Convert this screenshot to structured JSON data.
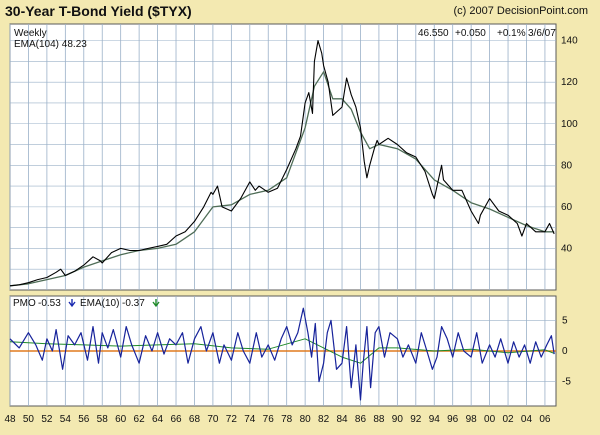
{
  "title": "30-Year T-Bond Yield ($TYX)",
  "copyright": "(c) 2007 DecisionPoint.com",
  "colors": {
    "background": "#f3e9b1",
    "panel": "#ffffff",
    "grid": "#9ab0c8",
    "price_line": "#000000",
    "ema_line": "#4f6d57",
    "pmo_line": "#17239b",
    "pmo_ema_line": "#1f8a2a",
    "zero_line": "#e07a1e",
    "down_arrow": "#1a2ab0",
    "up_arrow": "#1f8a2a"
  },
  "chart_data": [
    {
      "type": "line",
      "panel": "price",
      "period_label": "Weekly",
      "ema_label": "EMA(104) 48.23",
      "quote": {
        "last": "46.550",
        "change": "+0.050",
        "pct": "+0.1%",
        "date": "3/6/07"
      },
      "ylim": [
        20,
        148
      ],
      "yticks": [
        40,
        60,
        80,
        100,
        120,
        140
      ],
      "xlim": [
        1948,
        2007.2
      ],
      "series": [
        {
          "key": "price",
          "x": [
            1948,
            1949,
            1950,
            1951,
            1952,
            1953,
            1953.5,
            1954,
            1955,
            1956,
            1957,
            1957.8,
            1958,
            1959,
            1960,
            1961,
            1962,
            1963,
            1964,
            1965,
            1966,
            1967,
            1968,
            1969,
            1969.8,
            1970,
            1970.5,
            1971,
            1972,
            1973,
            1974,
            1974.6,
            1975,
            1976,
            1977,
            1978,
            1979,
            1979.5,
            1980,
            1980.4,
            1980.8,
            1981,
            1981.4,
            1981.8,
            1982,
            1982.5,
            1983,
            1984,
            1984.5,
            1985,
            1985.5,
            1986,
            1986.4,
            1986.7,
            1987,
            1987.5,
            1987.8,
            1988,
            1989,
            1990,
            1991,
            1992,
            1993,
            1993.8,
            1994,
            1994.8,
            1995,
            1996,
            1997,
            1998,
            1998.8,
            1999,
            2000,
            2001,
            2002,
            2003,
            2003.5,
            2004,
            2005,
            2006,
            2006.5,
            2007
          ],
          "y": [
            22,
            22.5,
            23.5,
            25,
            26,
            28.5,
            30,
            27,
            29,
            32,
            36,
            34,
            33,
            38,
            40,
            39,
            39,
            40,
            41,
            42,
            46,
            48,
            53,
            60,
            67,
            66,
            70,
            60,
            58,
            64,
            72,
            68,
            70,
            67,
            69,
            78,
            88,
            94,
            110,
            115,
            105,
            130,
            140,
            134,
            128,
            120,
            104,
            108,
            122,
            114,
            108,
            98,
            82,
            74,
            80,
            88,
            92,
            90,
            93,
            90,
            86,
            84,
            77,
            66,
            64,
            80,
            73,
            68,
            68,
            58,
            52,
            56,
            64,
            58,
            56,
            52,
            46,
            52,
            48,
            48,
            52,
            47
          ]
        },
        {
          "key": "ema",
          "x": [
            1948,
            1950,
            1952,
            1954,
            1956,
            1958,
            1960,
            1962,
            1964,
            1966,
            1968,
            1970,
            1972,
            1974,
            1976,
            1978,
            1980,
            1981,
            1982,
            1983,
            1984,
            1985,
            1986,
            1987,
            1988,
            1990,
            1992,
            1994,
            1996,
            1998,
            2000,
            2002,
            2004,
            2006,
            2007
          ],
          "y": [
            22,
            23,
            25,
            27,
            31,
            34,
            37,
            39,
            40,
            42,
            48,
            60,
            61,
            66,
            68,
            74,
            98,
            118,
            125,
            112,
            112,
            107,
            96,
            88,
            90,
            88,
            83,
            73,
            68,
            62,
            59,
            55,
            51,
            48,
            48
          ]
        }
      ]
    },
    {
      "type": "line",
      "panel": "pmo",
      "pmo_label": "PMO",
      "pmo_value": "-0.53",
      "ema_label": "EMA(10)",
      "ema_value": "-0.37",
      "ylim": [
        -9,
        9
      ],
      "yticks": [
        -5,
        0,
        5
      ],
      "ytick_labels": [
        "-5",
        "0",
        "5"
      ],
      "series": [
        {
          "key": "pmo",
          "x": [
            1948,
            1949,
            1950,
            1950.8,
            1951.5,
            1952,
            1952.6,
            1953,
            1953.7,
            1954.3,
            1955,
            1955.7,
            1956.4,
            1957,
            1957.6,
            1958,
            1958.6,
            1959.2,
            1960,
            1960.6,
            1961.2,
            1962,
            1962.7,
            1963.4,
            1964,
            1964.7,
            1965.3,
            1966,
            1966.7,
            1967.3,
            1968,
            1968.7,
            1969.3,
            1970,
            1970.7,
            1971.2,
            1972,
            1972.7,
            1973.3,
            1974,
            1974.7,
            1975.3,
            1976,
            1976.7,
            1977.4,
            1978,
            1978.6,
            1979.2,
            1979.8,
            1980.3,
            1980.7,
            1981.1,
            1981.5,
            1982,
            1982.4,
            1982.8,
            1983.4,
            1984,
            1984.5,
            1985,
            1985.5,
            1986,
            1986.3,
            1986.7,
            1987.1,
            1987.6,
            1988,
            1988.6,
            1989.2,
            1990,
            1990.6,
            1991.2,
            1992,
            1992.6,
            1993.2,
            1993.8,
            1994.3,
            1994.8,
            1995.4,
            1996,
            1996.6,
            1997.2,
            1998,
            1998.6,
            1999.2,
            2000,
            2000.6,
            2001.2,
            2002,
            2002.6,
            2003.2,
            2003.8,
            2004.4,
            2005,
            2005.6,
            2006.2,
            2006.7,
            2007
          ],
          "y": [
            2,
            0.5,
            3,
            1,
            -1.5,
            2,
            0,
            3.5,
            -3,
            2.5,
            1,
            3,
            -1.5,
            4,
            -2,
            3,
            0.5,
            3.5,
            -1,
            4,
            1,
            -2,
            2.5,
            0,
            3,
            -0.5,
            2,
            1,
            3,
            -2,
            2,
            4,
            0,
            3,
            -2,
            1,
            -1.5,
            3,
            0,
            -2,
            3,
            -1,
            1,
            -1.5,
            2,
            4,
            1,
            3,
            7,
            3,
            -1,
            4.5,
            -5,
            -2,
            3,
            5,
            -3,
            -2,
            4,
            -6,
            1,
            -8,
            -2,
            4,
            -6,
            3,
            4,
            -1,
            3,
            2,
            -1,
            1,
            -2,
            3,
            0,
            -3,
            -1,
            4,
            2,
            -1,
            3,
            0,
            -1,
            3,
            -2,
            1,
            -1,
            2,
            -2,
            1.5,
            -1,
            1,
            -2,
            1.5,
            -1,
            1,
            2.5,
            -0.5
          ]
        },
        {
          "key": "pmo_ema",
          "x": [
            1948,
            1952,
            1956,
            1960,
            1964,
            1968,
            1972,
            1976,
            1980,
            1982,
            1984,
            1986,
            1988,
            1990,
            1994,
            1998,
            2002,
            2006,
            2007
          ],
          "y": [
            1.5,
            1.2,
            1,
            0.8,
            1,
            1.2,
            0.5,
            0.3,
            2,
            0.5,
            -1,
            -2,
            0.5,
            0.5,
            0,
            0.3,
            -0.3,
            0.2,
            -0.4
          ]
        }
      ]
    }
  ],
  "x_axis": {
    "ticks": [
      1948,
      1950,
      1952,
      1954,
      1956,
      1958,
      1960,
      1962,
      1964,
      1966,
      1968,
      1970,
      1972,
      1974,
      1976,
      1978,
      1980,
      1982,
      1984,
      1986,
      1988,
      1990,
      1992,
      1994,
      1996,
      1998,
      2000,
      2002,
      2004,
      2006
    ],
    "labels": [
      "48",
      "50",
      "52",
      "54",
      "56",
      "58",
      "60",
      "62",
      "64",
      "66",
      "68",
      "70",
      "72",
      "74",
      "76",
      "78",
      "80",
      "82",
      "84",
      "86",
      "88",
      "90",
      "92",
      "94",
      "96",
      "98",
      "00",
      "02",
      "04",
      "06"
    ]
  },
  "icons": {
    "pmo_arrow": "down-arrow-icon",
    "ema_arrow": "down-arrow-icon"
  }
}
